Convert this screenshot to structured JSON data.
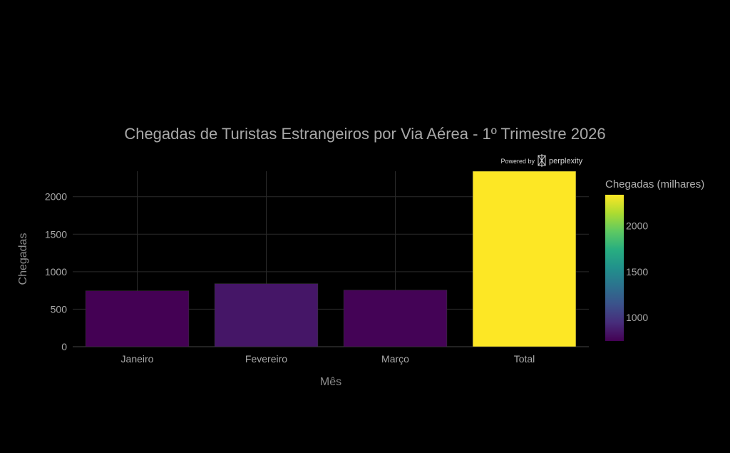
{
  "chart_data": {
    "type": "bar",
    "title": "Chegadas de Turistas Estrangeiros por Via Aérea - 1º Trimestre 2026",
    "xlabel": "Mês",
    "ylabel": "Chegadas",
    "categories": [
      "Janeiro",
      "Fevereiro",
      "Março",
      "Total"
    ],
    "values": [
      745,
      840,
      755,
      2340
    ],
    "ylim": [
      0,
      2340
    ],
    "yticks": [
      0,
      500,
      1000,
      1500,
      2000
    ],
    "grid": true,
    "colorscale": "viridis",
    "colorbar": {
      "title": "Chegadas (milhares)",
      "range": [
        745,
        2340
      ],
      "ticks": [
        1000,
        1500,
        2000
      ]
    }
  },
  "watermark": {
    "prefix": "Powered by",
    "brand": "perplexity"
  }
}
